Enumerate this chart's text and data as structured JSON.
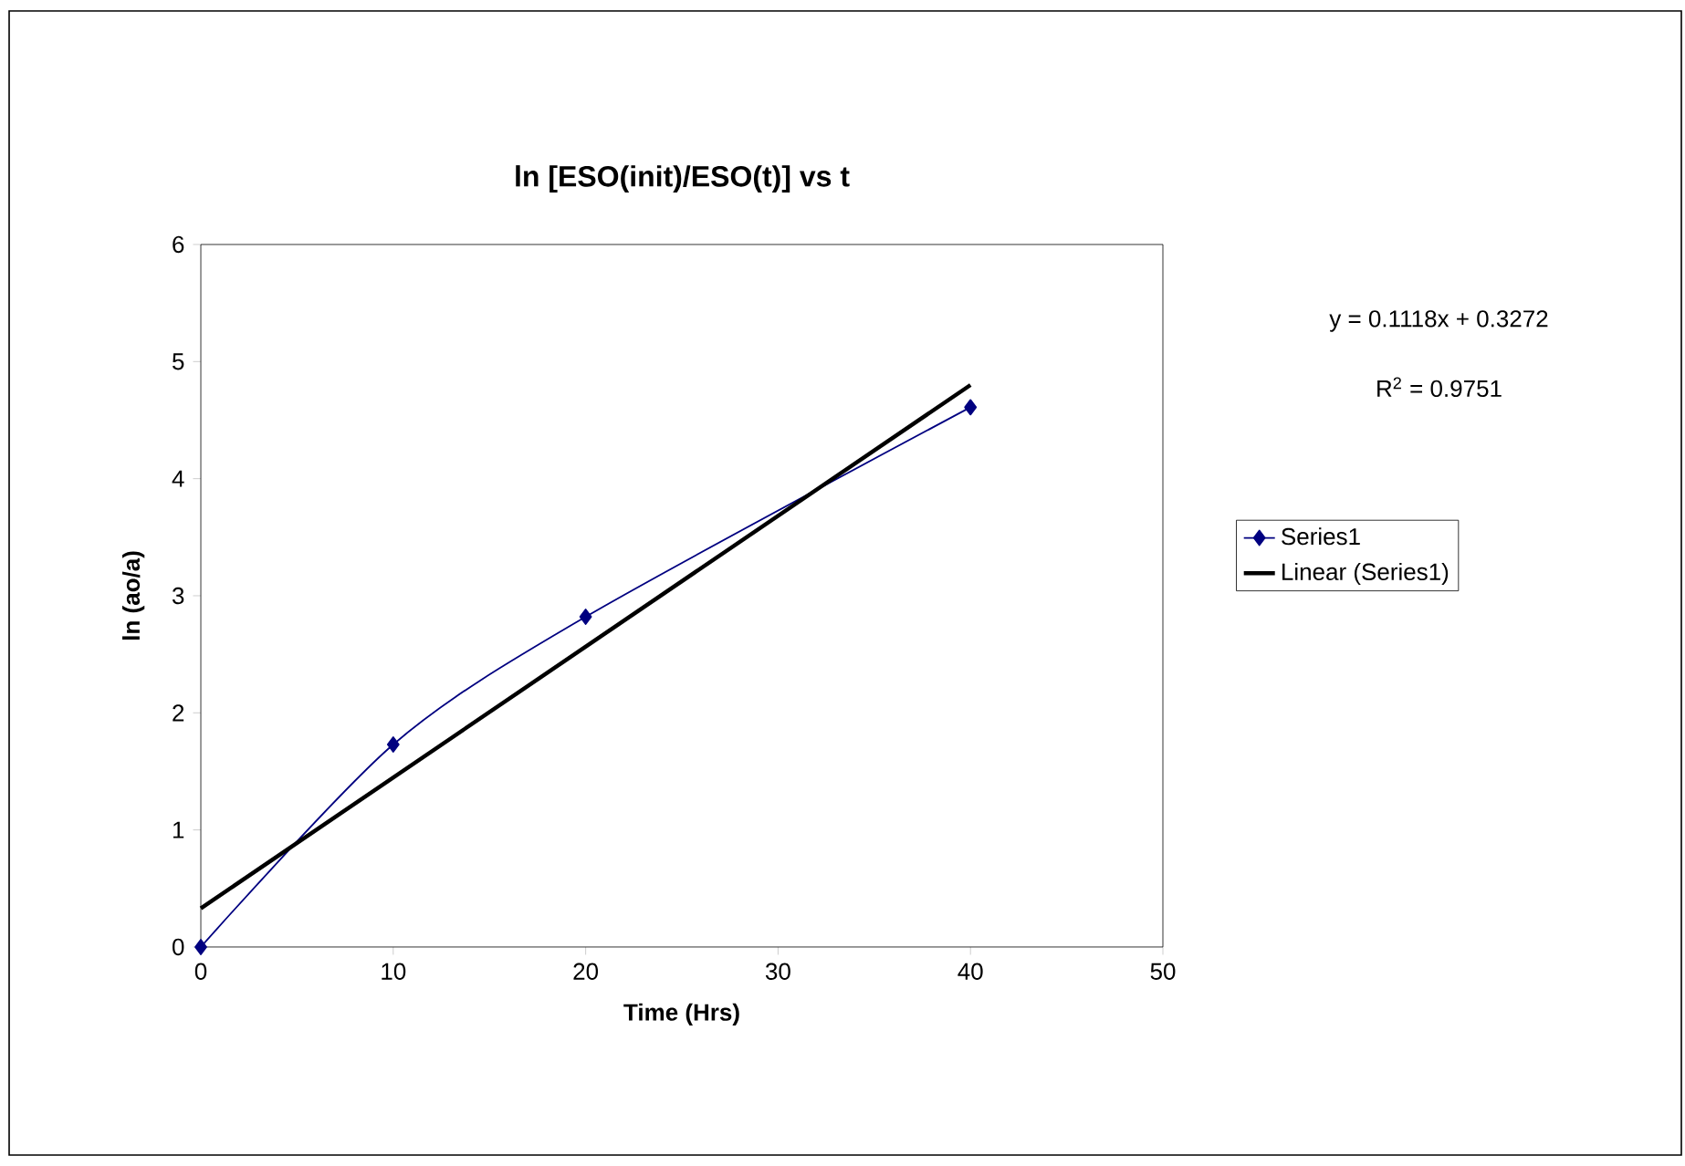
{
  "chart_data": {
    "type": "line",
    "title": "ln [ESO(init)/ESO(t)] vs t",
    "xlabel": "Time (Hrs)",
    "ylabel": "ln (ao/a)",
    "xlim": [
      0,
      50
    ],
    "xticks": [
      0,
      10,
      20,
      30,
      40,
      50
    ],
    "ylim": [
      0,
      6
    ],
    "yticks": [
      0,
      1,
      2,
      3,
      4,
      5,
      6
    ],
    "grid": false,
    "legend": "right",
    "series": [
      {
        "name": "Series1",
        "color": "#000080",
        "marker": "diamond",
        "x": [
          0,
          10,
          20,
          40
        ],
        "values": [
          0,
          1.73,
          2.82,
          4.61
        ]
      },
      {
        "name": "Linear (Series1)",
        "color": "#000000",
        "marker": "none",
        "x": [
          0,
          40
        ],
        "values": [
          0.33,
          4.8
        ]
      }
    ],
    "annotations": [
      "y = 0.1118x + 0.3272",
      "R$^{2}$ = 0.9751"
    ]
  }
}
